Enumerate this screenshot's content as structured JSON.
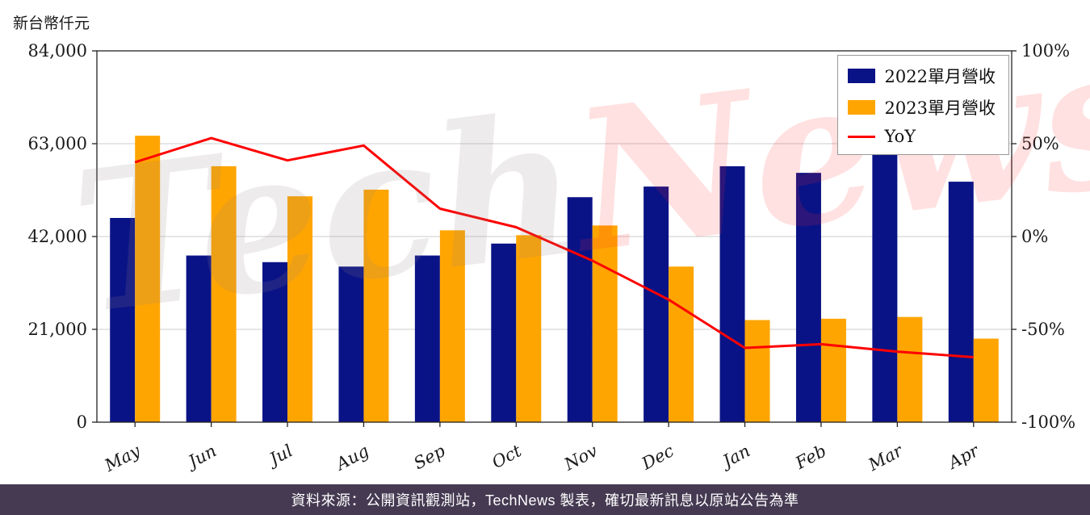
{
  "page": {
    "unit_label": "新台幣仟元",
    "footer": "資料來源：公開資訊觀測站，TechNews 製表，確切最新訊息以原站公告為準",
    "watermark": {
      "tech": "Tech",
      "news": "News"
    }
  },
  "chart_data": {
    "type": "bar",
    "title": "",
    "categories": [
      "May",
      "Jun",
      "Jul",
      "Aug",
      "Sep",
      "Oct",
      "Nov",
      "Dec",
      "Jan",
      "Feb",
      "Mar",
      "Apr"
    ],
    "series": [
      {
        "name": "2022單月營收",
        "type": "bar",
        "color": "#0a1386",
        "axis": "left",
        "values": [
          46200,
          37700,
          36200,
          35200,
          37700,
          40400,
          50900,
          53300,
          57900,
          56400,
          62700,
          54400
        ]
      },
      {
        "name": "2023單月營收",
        "type": "bar",
        "color": "#ffa502",
        "axis": "left",
        "values": [
          64800,
          57900,
          51100,
          52600,
          43400,
          42300,
          44500,
          35200,
          23100,
          23400,
          23800,
          18900
        ]
      },
      {
        "name": "YoY",
        "type": "line",
        "color": "#ff0000",
        "axis": "right",
        "values": [
          40,
          53,
          41,
          49,
          15,
          5,
          -13,
          -34,
          -60,
          -58,
          -62,
          -65
        ]
      }
    ],
    "left_axis": {
      "min": 0,
      "max": 84000,
      "tick_values": [
        0,
        21000,
        42000,
        63000,
        84000
      ],
      "tick_labels": [
        "0",
        "21,000",
        "42,000",
        "63,000",
        "84,000"
      ]
    },
    "right_axis": {
      "min": -100,
      "max": 100,
      "tick_values": [
        -100,
        -50,
        0,
        50,
        100
      ],
      "tick_labels": [
        "-100%",
        "-50%",
        "0%",
        "50%",
        "100%"
      ]
    },
    "grid": true,
    "legend_position": "top-right"
  }
}
